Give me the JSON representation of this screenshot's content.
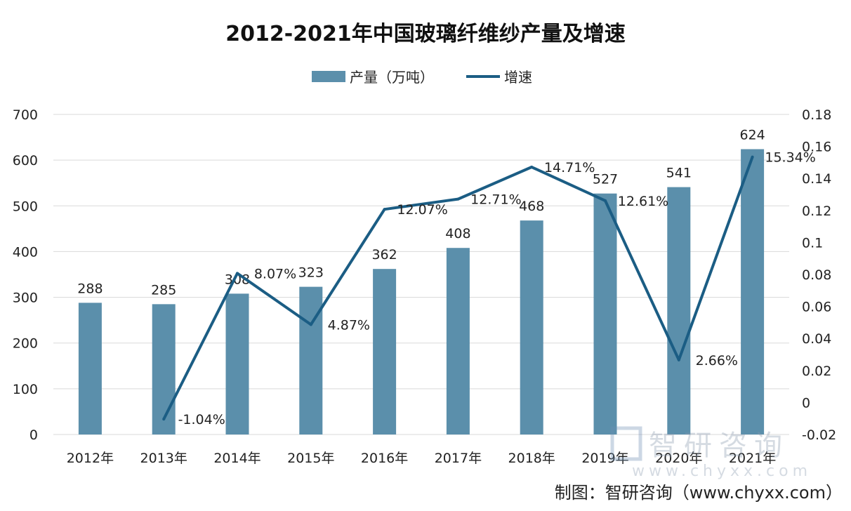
{
  "chart_data": {
    "type": "bar+line",
    "title": "2012-2021年中国玻璃纤维纱产量及增速",
    "categories": [
      "2012年",
      "2013年",
      "2014年",
      "2015年",
      "2016年",
      "2017年",
      "2018年",
      "2019年",
      "2020年",
      "2021年"
    ],
    "series": [
      {
        "name": "产量（万吨）",
        "type": "bar",
        "axis": "left",
        "color": "#5b8fab",
        "values": [
          288,
          285,
          308,
          323,
          362,
          408,
          468,
          527,
          541,
          624
        ],
        "labels": [
          "288",
          "285",
          "308",
          "323",
          "362",
          "408",
          "468",
          "527",
          "541",
          "624"
        ]
      },
      {
        "name": "增速",
        "type": "line",
        "axis": "right",
        "color": "#1b5d84",
        "values": [
          null,
          -0.0104,
          0.0807,
          0.0487,
          0.1207,
          0.1271,
          0.1471,
          0.1261,
          0.0266,
          0.1534
        ],
        "labels": [
          "",
          "-1.04%",
          "8.07%",
          "4.87%",
          "12.07%",
          "12.71%",
          "14.71%",
          "12.61%",
          "2.66%",
          "15.34%"
        ]
      }
    ],
    "left_axis": {
      "range": [
        0,
        700
      ],
      "ticks": [
        "0",
        "100",
        "200",
        "300",
        "400",
        "500",
        "600",
        "700"
      ]
    },
    "right_axis": {
      "range": [
        -0.02,
        0.18
      ],
      "ticks": [
        "-0.02",
        "0",
        "0.02",
        "0.04",
        "0.06",
        "0.08",
        "0.1",
        "0.12",
        "0.14",
        "0.16",
        "0.18"
      ]
    },
    "grid": true,
    "legend_position": "top"
  },
  "watermark": {
    "name": "智研咨询",
    "url": "www.chyxx.com"
  },
  "footer": "制图：智研咨询（www.chyxx.com）"
}
